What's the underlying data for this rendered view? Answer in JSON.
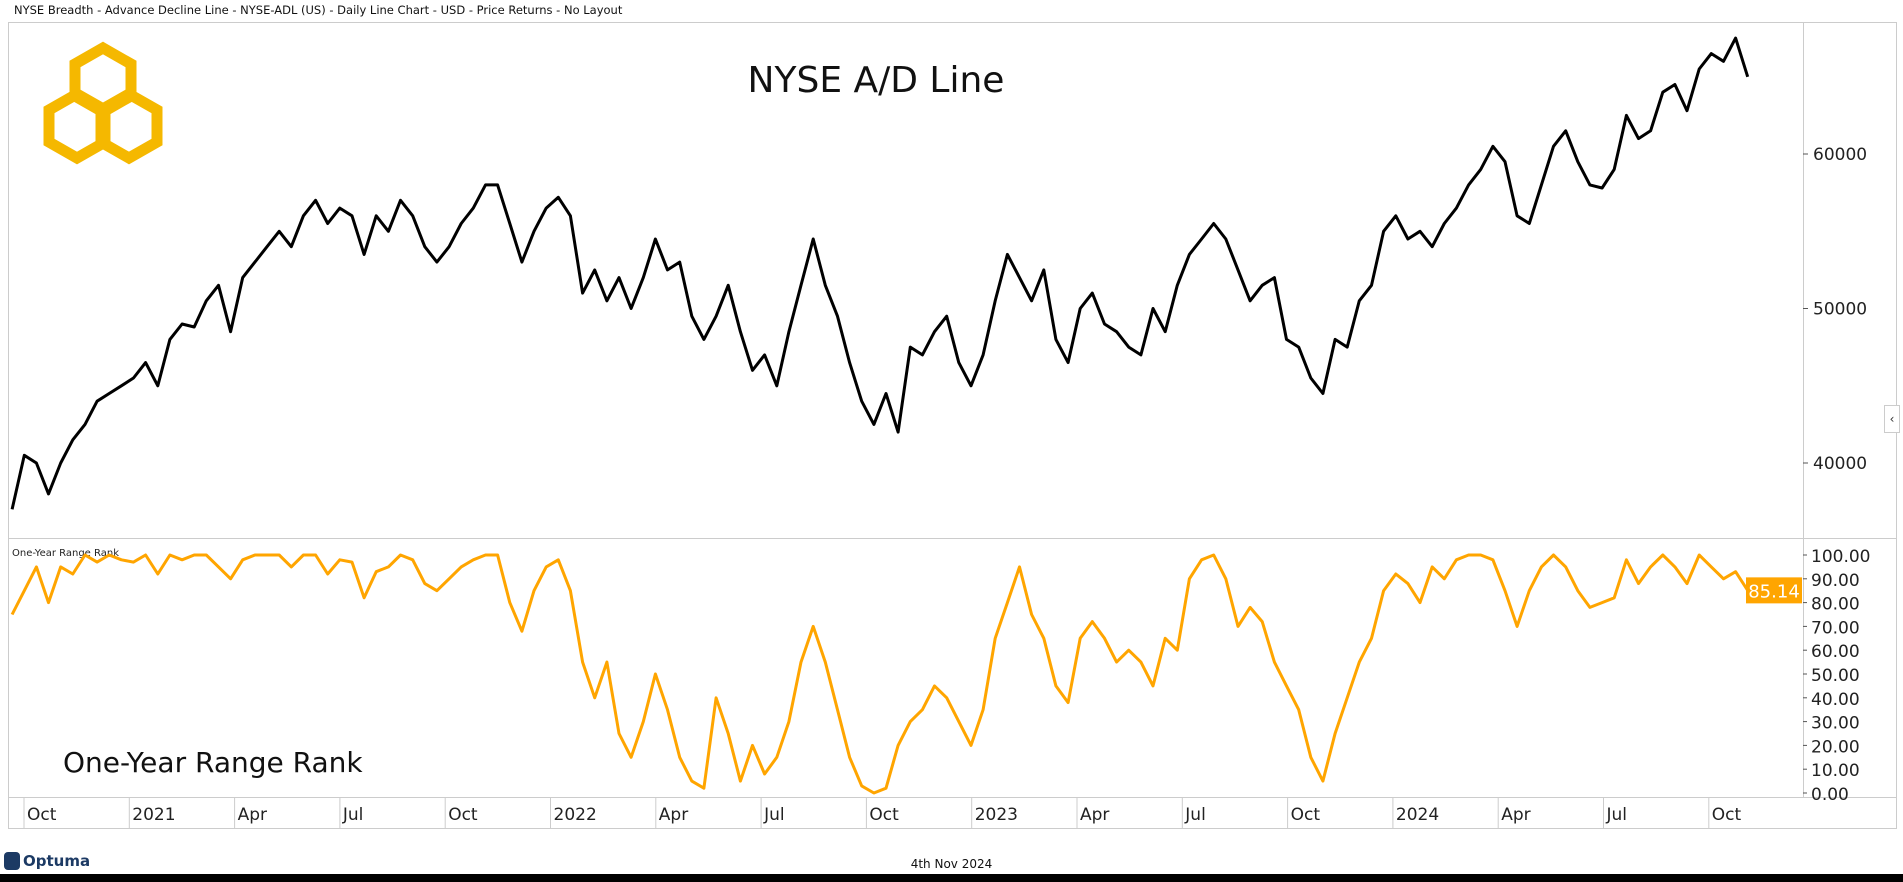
{
  "header": {
    "title": "NYSE Breadth - Advance Decline Line - NYSE-ADL (US) - Daily Line Chart - USD - Price Returns - No Layout"
  },
  "footer": {
    "date": "4th Nov 2024",
    "brand": "Optuma"
  },
  "colors": {
    "line": "#000000",
    "rank": "#FFA500",
    "logo": "#F5B800",
    "grid": "#cccccc"
  },
  "chart_data": [
    {
      "type": "line",
      "title": "NYSE A/D Line",
      "ylim": [
        35000,
        68000
      ],
      "yticks": [
        "40000",
        "50000",
        "60000"
      ],
      "ytick_values": [
        40000,
        50000,
        60000
      ],
      "series": [
        {
          "name": "NYSE-ADL",
          "values": [
            37000,
            40500,
            40000,
            38000,
            40000,
            41500,
            42500,
            44000,
            44500,
            45000,
            45500,
            46500,
            45000,
            48000,
            49000,
            48800,
            50500,
            51500,
            48500,
            52000,
            53000,
            54000,
            55000,
            54000,
            56000,
            57000,
            55500,
            56500,
            56000,
            53500,
            56000,
            55000,
            57000,
            56000,
            54000,
            53000,
            54000,
            55500,
            56500,
            58000,
            58000,
            55500,
            53000,
            55000,
            56500,
            57200,
            56000,
            51000,
            52500,
            50500,
            52000,
            50000,
            52000,
            54500,
            52500,
            53000,
            49500,
            48000,
            49500,
            51500,
            48500,
            46000,
            47000,
            45000,
            48500,
            51500,
            54500,
            51500,
            49500,
            46500,
            44000,
            42500,
            44500,
            42000,
            47500,
            47000,
            48500,
            49500,
            46500,
            45000,
            47000,
            50500,
            53500,
            52000,
            50500,
            52500,
            48000,
            46500,
            50000,
            51000,
            49000,
            48500,
            47500,
            47000,
            50000,
            48500,
            51500,
            53500,
            54500,
            55500,
            54500,
            52500,
            50500,
            51500,
            52000,
            48000,
            47500,
            45500,
            44500,
            48000,
            47500,
            50500,
            51500,
            55000,
            56000,
            54500,
            55000,
            54000,
            55500,
            56500,
            58000,
            59000,
            60500,
            59500,
            56000,
            55500,
            58000,
            60500,
            61500,
            59500,
            58000,
            57800,
            59000,
            62500,
            61000,
            61500,
            64000,
            64500,
            62800,
            65500,
            66500,
            66000,
            67500,
            65000
          ]
        }
      ]
    },
    {
      "type": "line",
      "title": "One-Year Range Rank",
      "label": "One-Year Range Rank",
      "ylim": [
        0,
        100
      ],
      "yticks": [
        "100.00",
        "90.00",
        "80.00",
        "70.00",
        "60.00",
        "50.00",
        "40.00",
        "30.00",
        "20.00",
        "10.00",
        "0.00"
      ],
      "ytick_values": [
        100,
        90,
        80,
        70,
        60,
        50,
        40,
        30,
        20,
        10,
        0
      ],
      "last_value": "85.14",
      "series": [
        {
          "name": "One-Year Range Rank",
          "values": [
            75,
            85,
            95,
            80,
            95,
            92,
            100,
            97,
            100,
            98,
            97,
            100,
            92,
            100,
            98,
            100,
            100,
            95,
            90,
            98,
            100,
            100,
            100,
            95,
            100,
            100,
            92,
            98,
            97,
            82,
            93,
            95,
            100,
            98,
            88,
            85,
            90,
            95,
            98,
            100,
            100,
            80,
            68,
            85,
            95,
            98,
            85,
            55,
            40,
            55,
            25,
            15,
            30,
            50,
            35,
            15,
            5,
            2,
            40,
            25,
            5,
            20,
            8,
            15,
            30,
            55,
            70,
            55,
            35,
            15,
            3,
            0,
            2,
            20,
            30,
            35,
            45,
            40,
            30,
            20,
            35,
            65,
            80,
            95,
            75,
            65,
            45,
            38,
            65,
            72,
            65,
            55,
            60,
            55,
            45,
            65,
            60,
            90,
            98,
            100,
            90,
            70,
            78,
            72,
            55,
            45,
            35,
            15,
            5,
            25,
            40,
            55,
            65,
            85,
            92,
            88,
            80,
            95,
            90,
            98,
            100,
            100,
            98,
            85,
            70,
            85,
            95,
            100,
            95,
            85,
            78,
            80,
            82,
            98,
            88,
            95,
            100,
            95,
            88,
            100,
            95,
            90,
            93,
            85.14
          ]
        }
      ]
    }
  ],
  "xaxis": {
    "ticks": [
      "Oct",
      "2021",
      "Apr",
      "Jul",
      "Oct",
      "2022",
      "Apr",
      "Jul",
      "Oct",
      "2023",
      "Apr",
      "Jul",
      "Oct",
      "2024",
      "Apr",
      "Jul",
      "Oct"
    ]
  }
}
